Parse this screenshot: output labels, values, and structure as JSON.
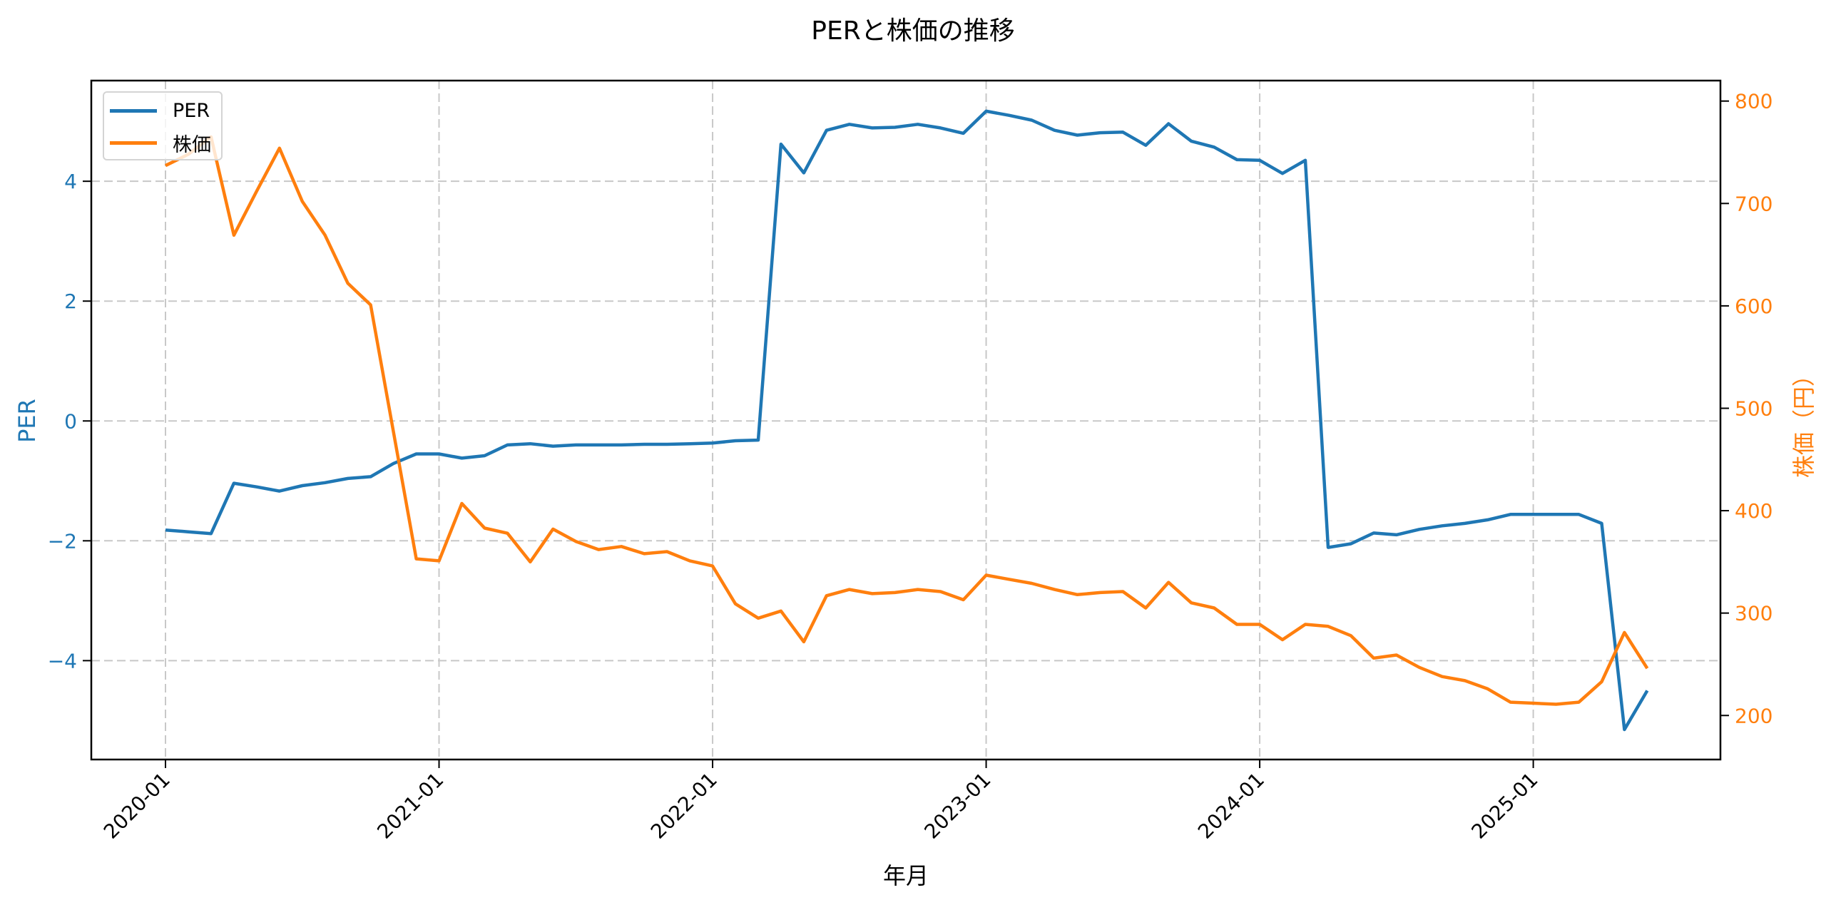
{
  "chart_data": {
    "type": "line",
    "title": "PERと株価の推移",
    "xlabel": "年月",
    "ylabel_left": "PER",
    "ylabel_right": "株価（円）",
    "x_tick_labels": [
      "2020-01",
      "2021-01",
      "2022-01",
      "2023-01",
      "2024-01",
      "2025-01"
    ],
    "y_left_ticks": [
      4,
      2,
      0,
      -2,
      -4
    ],
    "y_left_tick_labels": [
      "4",
      "2",
      "0",
      "−2",
      "−4"
    ],
    "y_right_ticks": [
      800,
      700,
      600,
      500,
      400,
      300,
      200
    ],
    "y_left_range": [
      -5.65,
      5.68
    ],
    "y_right_range": [
      157,
      820
    ],
    "grid": true,
    "grid_style": "dashed",
    "legend_position": "upper left",
    "x": [
      "2020-01",
      "2020-02",
      "2020-03",
      "2020-04",
      "2020-05",
      "2020-06",
      "2020-07",
      "2020-08",
      "2020-09",
      "2020-10",
      "2020-11",
      "2020-12",
      "2021-01",
      "2021-02",
      "2021-03",
      "2021-04",
      "2021-05",
      "2021-06",
      "2021-07",
      "2021-08",
      "2021-09",
      "2021-10",
      "2021-11",
      "2021-12",
      "2022-01",
      "2022-02",
      "2022-03",
      "2022-04",
      "2022-05",
      "2022-06",
      "2022-07",
      "2022-08",
      "2022-09",
      "2022-10",
      "2022-11",
      "2022-12",
      "2023-01",
      "2023-02",
      "2023-03",
      "2023-04",
      "2023-05",
      "2023-06",
      "2023-07",
      "2023-08",
      "2023-09",
      "2023-10",
      "2023-11",
      "2023-12",
      "2024-01",
      "2024-02",
      "2024-03",
      "2024-04",
      "2024-05",
      "2024-06",
      "2024-07",
      "2024-08",
      "2024-09",
      "2024-10",
      "2024-11",
      "2024-12",
      "2025-01",
      "2025-02",
      "2025-03",
      "2025-04",
      "2025-05",
      "2025-06"
    ],
    "series": [
      {
        "name": "PER",
        "axis": "left",
        "color": "#1f77b4",
        "values": [
          -1.82,
          -1.85,
          -1.88,
          -1.04,
          -1.1,
          -1.17,
          -1.08,
          -1.03,
          -0.96,
          -0.93,
          -0.71,
          -0.55,
          -0.55,
          -0.62,
          -0.58,
          -0.4,
          -0.38,
          -0.42,
          -0.4,
          -0.4,
          -0.4,
          -0.39,
          -0.39,
          -0.38,
          -0.37,
          -0.33,
          -0.32,
          4.62,
          4.14,
          4.85,
          4.95,
          4.89,
          4.9,
          4.95,
          4.89,
          4.8,
          5.17,
          5.1,
          5.02,
          4.85,
          4.77,
          4.81,
          4.82,
          4.6,
          4.96,
          4.67,
          4.57,
          4.36,
          4.35,
          4.13,
          4.35,
          -2.11,
          -2.05,
          -1.87,
          -1.9,
          -1.81,
          -1.75,
          -1.71,
          -1.65,
          -1.56,
          -1.56,
          -1.56,
          -1.56,
          -1.71,
          -5.15,
          -4.5
        ]
      },
      {
        "name": "株価",
        "axis": "right",
        "color": "#ff7f0e",
        "values": [
          737,
          748,
          765,
          669,
          712,
          754,
          702,
          669,
          622,
          601,
          477,
          353,
          351,
          407,
          383,
          378,
          350,
          382,
          370,
          362,
          365,
          358,
          360,
          351,
          346,
          309,
          295,
          302,
          272,
          317,
          323,
          319,
          320,
          323,
          321,
          313,
          337,
          333,
          329,
          323,
          318,
          320,
          321,
          305,
          330,
          310,
          305,
          289,
          289,
          274,
          289,
          287,
          278,
          256,
          259,
          247,
          238,
          234,
          226,
          213,
          212,
          211,
          213,
          233,
          281,
          246
        ]
      }
    ]
  },
  "colors": {
    "per": "#1f77b4",
    "price": "#ff7f0e",
    "grid": "#c8c8c8",
    "axis": "#000000"
  }
}
